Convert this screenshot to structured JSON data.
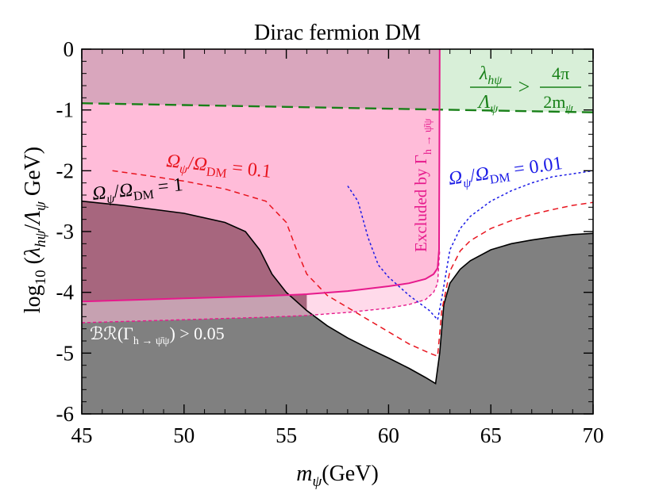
{
  "chart_data": {
    "type": "line",
    "title": "Dirac fermion DM",
    "xlabel": "m_ψ(GeV)",
    "ylabel": "log₁₀(λ_hψ/Λ_ψ GeV)",
    "xlim": [
      45,
      70
    ],
    "ylim": [
      -6,
      0
    ],
    "xticks": [
      "45",
      "50",
      "55",
      "60",
      "65",
      "70"
    ],
    "yticks": [
      "0",
      "-1",
      "-2",
      "-3",
      "-4",
      "-5",
      "-6"
    ],
    "colors": {
      "relic_1": "#000000",
      "relic_0p1": "#e8141e",
      "relic_0p01": "#1a1ae6",
      "perturbativity": "#188018",
      "invisible_width": "#e61a8c",
      "br_bound": "#e61a8c",
      "gray_fill": "#808080",
      "pink_fill": "#ffbcd9",
      "green_fill": "#d8efd8",
      "overlap_fill": "#a7667e"
    },
    "series": [
      {
        "name": "Ω_ψ/Ω_DM = 1",
        "style": "solid",
        "x": [
          45,
          47,
          50,
          52,
          53,
          53.7,
          54.3,
          55,
          56,
          57,
          58,
          59,
          60,
          61,
          61.8,
          62.3,
          62.5,
          62.7,
          63,
          63.5,
          64,
          65,
          66,
          67,
          68,
          69,
          70
        ],
        "y": [
          -2.5,
          -2.57,
          -2.7,
          -2.85,
          -3.0,
          -3.3,
          -3.7,
          -4.0,
          -4.3,
          -4.55,
          -4.75,
          -4.92,
          -5.08,
          -5.25,
          -5.4,
          -5.5,
          -5.0,
          -4.2,
          -3.85,
          -3.62,
          -3.48,
          -3.3,
          -3.2,
          -3.14,
          -3.09,
          -3.05,
          -3.03
        ]
      },
      {
        "name": "Ω_ψ/Ω_DM = 0.1",
        "style": "dashed",
        "x": [
          46.5,
          48,
          50,
          52,
          54,
          55,
          55.5,
          56,
          57,
          58,
          59,
          60,
          61,
          62,
          62.4,
          62.6,
          63,
          63.5,
          64,
          65,
          66,
          67,
          68,
          69,
          70
        ],
        "y": [
          -2.0,
          -2.07,
          -2.17,
          -2.3,
          -2.5,
          -2.85,
          -3.3,
          -3.7,
          -4.05,
          -4.25,
          -4.45,
          -4.65,
          -4.85,
          -5.0,
          -5.05,
          -4.3,
          -3.65,
          -3.32,
          -3.15,
          -2.95,
          -2.82,
          -2.72,
          -2.64,
          -2.57,
          -2.52
        ]
      },
      {
        "name": "Ω_ψ/Ω_DM = 0.01",
        "style": "dotted",
        "x": [
          58,
          58.5,
          59,
          59.5,
          60,
          61,
          62,
          62.4,
          62.6,
          63,
          63.5,
          64,
          65,
          66,
          67,
          68,
          69,
          70
        ],
        "y": [
          -2.25,
          -2.5,
          -3.1,
          -3.55,
          -3.75,
          -4.05,
          -4.3,
          -4.45,
          -4.1,
          -3.3,
          -2.95,
          -2.75,
          -2.5,
          -2.33,
          -2.2,
          -2.1,
          -2.05,
          -2.0
        ]
      },
      {
        "name": "λ_hψ/Λ_ψ > 4π/2m_ψ",
        "style": "dashed",
        "x": [
          45,
          50,
          55,
          60,
          65,
          70
        ],
        "y": [
          -0.89,
          -0.92,
          -0.95,
          -0.98,
          -1.01,
          -1.04
        ]
      },
      {
        "name": "Excluded by Γ_h→ψ̄ψ",
        "style": "solid",
        "x": [
          45,
          48,
          50,
          52,
          54,
          56,
          58,
          60,
          61,
          61.8,
          62.2,
          62.4,
          62.47,
          62.5
        ],
        "y": [
          -4.15,
          -4.12,
          -4.1,
          -4.08,
          -4.06,
          -4.03,
          -3.98,
          -3.9,
          -3.85,
          -3.78,
          -3.7,
          -3.6,
          -3.3,
          0
        ]
      },
      {
        "name": "BR(Γ_h→ψ̄ψ) > 0.05",
        "style": "dashed",
        "x": [
          45,
          48,
          50,
          52,
          54,
          56,
          58,
          60,
          61,
          61.8,
          62.2,
          62.4,
          62.5
        ],
        "y": [
          -4.5,
          -4.47,
          -4.45,
          -4.43,
          -4.41,
          -4.38,
          -4.33,
          -4.26,
          -4.2,
          -4.12,
          -4.0,
          -3.85,
          -3.3
        ]
      }
    ],
    "annotations": {
      "relic_1": "Ω_ψ/Ω_DM = 1",
      "relic_0p1": "Ω_ψ/Ω_DM = 0.1",
      "relic_0p01": "Ω_ψ/Ω_DM = 0.01",
      "excluded_width": "Excluded by Γ",
      "excluded_width_sub": "h → ψ̄ψ",
      "br_label": "ℬℛ(Γ",
      "br_label_sub": "h → ψ̄ψ",
      "br_label_tail": ") > 0.05",
      "pert_lhs_num": "λ",
      "pert_lhs_num_sub": "hψ",
      "pert_lhs_den": "Λ",
      "pert_lhs_den_sub": "ψ",
      "pert_gt": ">",
      "pert_rhs_num": "4π",
      "pert_rhs_den": "2m",
      "pert_rhs_den_sub": "ψ"
    }
  }
}
